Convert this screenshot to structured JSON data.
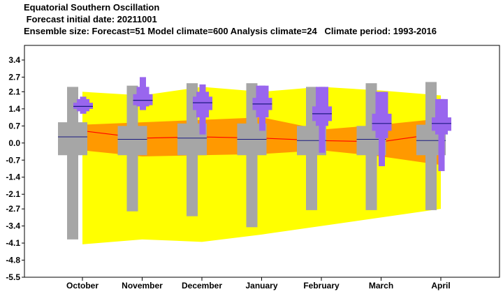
{
  "titles": {
    "line1": "Equatorial Southern Oscillation",
    "line2": " Forecast initial date: 20211001",
    "line3": "Ensemble size: Forecast=51 Model climate=600 Analysis climate=24   Climate period: 1993-2016"
  },
  "colors": {
    "climate_outer": "#ffff00",
    "climate_inner": "#ff9900",
    "climate_median": "#ff0000",
    "model_box": "#a6a6a6",
    "model_median": "#1a1a80",
    "forecast_box": "#9966ee",
    "forecast_median": "#1a1a80"
  },
  "chart_data": {
    "type": "box",
    "categories": [
      "October",
      "November",
      "December",
      "January",
      "February",
      "March",
      "April"
    ],
    "ylim": [
      -5.5,
      4.0
    ],
    "yticks": [
      "3.4",
      "2.7",
      "2.1",
      "1.4",
      "0.7",
      "0.0",
      "-0.7",
      "-1.4",
      "-2.1",
      "-2.7",
      "-3.4",
      "-4.1",
      "-4.8",
      "-5.5"
    ],
    "analysis_climate": {
      "outer_upper": [
        2.1,
        1.95,
        2.3,
        2.1,
        2.3,
        2.15,
        1.95
      ],
      "outer_lower": [
        -4.15,
        -3.95,
        -4.05,
        -3.75,
        -3.4,
        -3.05,
        -2.7
      ],
      "inner_upper": [
        0.75,
        0.85,
        0.95,
        1.05,
        0.55,
        0.75,
        1.0
      ],
      "inner_lower": [
        -0.3,
        -0.55,
        -0.5,
        -0.45,
        -0.3,
        -0.55,
        -0.9
      ],
      "median": [
        0.5,
        0.2,
        0.25,
        0.2,
        0.1,
        0.05,
        0.4
      ]
    },
    "model_climate": [
      {
        "min": -3.95,
        "p10": -0.5,
        "p25": -0.5,
        "median": 0.25,
        "p75": 0.85,
        "p90": 0.85,
        "max": 2.3
      },
      {
        "min": -2.8,
        "p10": -0.5,
        "p25": -0.5,
        "median": 0.15,
        "p75": 0.7,
        "p90": 0.7,
        "max": 2.35
      },
      {
        "min": -3.0,
        "p10": -0.5,
        "p25": -0.5,
        "median": 0.2,
        "p75": 0.8,
        "p90": 0.8,
        "max": 2.45
      },
      {
        "min": -3.45,
        "p10": -0.5,
        "p25": -0.5,
        "median": 0.15,
        "p75": 0.8,
        "p90": 0.8,
        "max": 2.45
      },
      {
        "min": -2.75,
        "p10": -0.5,
        "p25": -0.5,
        "median": 0.1,
        "p75": 0.7,
        "p90": 0.7,
        "max": 2.3
      },
      {
        "min": -2.75,
        "p10": -0.5,
        "p25": -0.5,
        "median": 0.15,
        "p75": 0.7,
        "p90": 0.7,
        "max": 2.45
      },
      {
        "min": -2.75,
        "p10": -0.5,
        "p25": -0.5,
        "median": 0.1,
        "p75": 0.75,
        "p90": 0.75,
        "max": 2.5
      }
    ],
    "forecast": [
      {
        "min": 1.2,
        "p10": 1.3,
        "p25": 1.4,
        "median": 1.5,
        "p75": 1.65,
        "p90": 1.8,
        "max": 1.9
      },
      {
        "min": 1.35,
        "p10": 1.5,
        "p25": 1.55,
        "median": 1.75,
        "p75": 2.0,
        "p90": 2.3,
        "max": 2.7
      },
      {
        "min": 0.35,
        "p10": 1.05,
        "p25": 1.35,
        "median": 1.65,
        "p75": 1.9,
        "p90": 2.1,
        "max": 2.4
      },
      {
        "min": 0.5,
        "p10": 1.05,
        "p25": 1.35,
        "median": 1.6,
        "p75": 1.85,
        "p90": 2.35,
        "max": 2.35
      },
      {
        "min": -0.4,
        "p10": 0.7,
        "p25": 0.9,
        "median": 1.2,
        "p75": 1.5,
        "p90": 2.3,
        "max": 2.3
      },
      {
        "min": -0.95,
        "p10": 0.2,
        "p25": 0.5,
        "median": 0.8,
        "p75": 1.2,
        "p90": 2.1,
        "max": 2.1
      },
      {
        "min": -1.15,
        "p10": 0.35,
        "p25": 0.5,
        "median": 0.8,
        "p75": 1.05,
        "p90": 1.8,
        "max": 1.8
      }
    ]
  }
}
